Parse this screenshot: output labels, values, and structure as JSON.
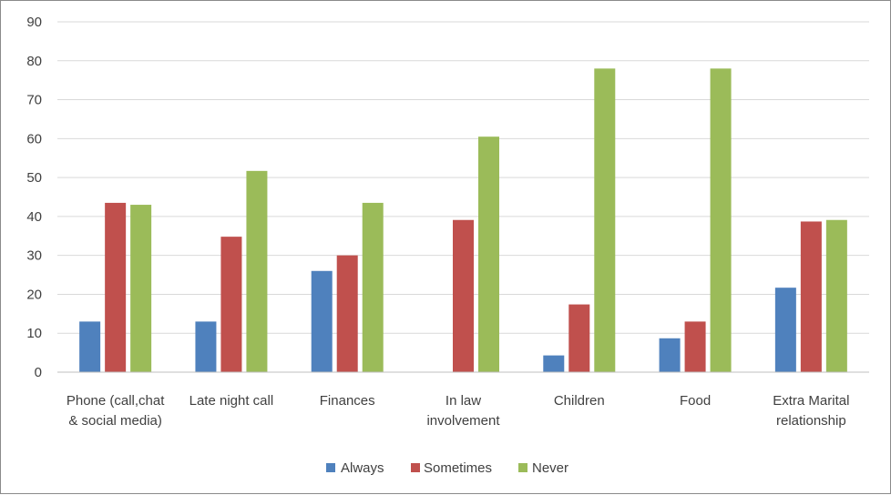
{
  "chart_data": {
    "type": "bar",
    "categories": [
      [
        "Phone (call,chat",
        "& social media)"
      ],
      [
        "Late night call"
      ],
      [
        "Finances"
      ],
      [
        "In law",
        "involvement"
      ],
      [
        "Children"
      ],
      [
        "Food"
      ],
      [
        "Extra Marital",
        "relationship"
      ]
    ],
    "series": [
      {
        "name": "Always",
        "color": "#4f81bd",
        "values": [
          13,
          13,
          26,
          0,
          4.3,
          8.7,
          21.7
        ]
      },
      {
        "name": "Sometimes",
        "color": "#c0504d",
        "values": [
          43.5,
          34.8,
          30,
          39.1,
          17.4,
          13,
          38.7
        ]
      },
      {
        "name": "Never",
        "color": "#9bbb59",
        "values": [
          43,
          51.7,
          43.5,
          60.5,
          78,
          78,
          39.1
        ]
      }
    ],
    "ylim": [
      0,
      90
    ],
    "yticks": [
      0,
      10,
      20,
      30,
      40,
      50,
      60,
      70,
      80,
      90
    ],
    "grid": true,
    "legend": "bottom"
  }
}
